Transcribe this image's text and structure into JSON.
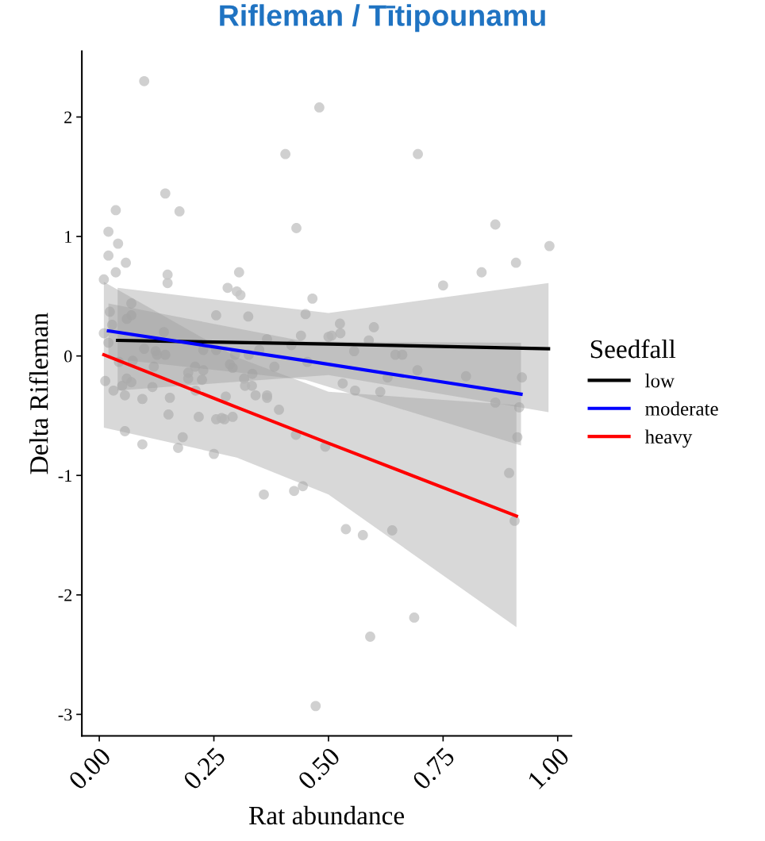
{
  "chart_data": {
    "type": "scatter",
    "title": "Rifleman / Tītipounamu",
    "xlabel": "Rat abundance",
    "ylabel": "Delta Rifleman",
    "legend_title": "Seedfall",
    "legend": "right",
    "grid": false,
    "xlim": [
      -0.038,
      1.03
    ],
    "xticks": [
      {
        "value": 0,
        "label": "0.00"
      },
      {
        "value": 0.25,
        "label": "0.25"
      },
      {
        "value": 0.5,
        "label": "0.50"
      },
      {
        "value": 0.75,
        "label": "0.75"
      },
      {
        "value": 1,
        "label": "1.00"
      }
    ],
    "ylim": [
      -3.18,
      2.55
    ],
    "yticks": [
      -3,
      -2,
      -1,
      0,
      1,
      2
    ],
    "series": [
      {
        "color": "#c4c4c4",
        "marker": "circle",
        "x": [
          0.098,
          0.48,
          0.695,
          0.406,
          0.144,
          0.175,
          0.036,
          0.43,
          0.864,
          0.02,
          0.041,
          0.982,
          0.909,
          0.02,
          0.058,
          0.834,
          0.75,
          0.036,
          0.149,
          0.149,
          0.305,
          0.01,
          0.28,
          0.3,
          0.308,
          0.465,
          0.07,
          0.023,
          0.028,
          0.06,
          0.07,
          0.255,
          0.325,
          0.45,
          0.01,
          0.141,
          0.44,
          0.02,
          0.098,
          0.123,
          0.126,
          0.144,
          0.227,
          0.255,
          0.296,
          0.326,
          0.349,
          0.366,
          0.419,
          0.5,
          0.525,
          0.599,
          0.526,
          0.588,
          0.556,
          0.646,
          0.661,
          0.694,
          0.629,
          0.531,
          0.558,
          0.613,
          0.8,
          0.922,
          0.864,
          0.916,
          0.912,
          0.493,
          0.894,
          0.906,
          0.538,
          0.575,
          0.639,
          0.687,
          0.591,
          0.472,
          0.043,
          0.073,
          0.119,
          0.209,
          0.227,
          0.194,
          0.194,
          0.224,
          0.285,
          0.291,
          0.316,
          0.334,
          0.382,
          0.454,
          0.013,
          0.06,
          0.07,
          0.05,
          0.031,
          0.056,
          0.094,
          0.116,
          0.21,
          0.276,
          0.318,
          0.333,
          0.341,
          0.366,
          0.366,
          0.392,
          0.154,
          0.151,
          0.217,
          0.255,
          0.267,
          0.273,
          0.291,
          0.429,
          0.056,
          0.094,
          0.172,
          0.182,
          0.25,
          0.359,
          0.425,
          0.444,
          0.507
        ],
        "values": [
          2.3,
          2.08,
          1.69,
          1.69,
          1.36,
          1.21,
          1.22,
          1.07,
          1.1,
          1.04,
          0.94,
          0.92,
          0.78,
          0.84,
          0.78,
          0.7,
          0.59,
          0.7,
          0.68,
          0.61,
          0.7,
          0.64,
          0.57,
          0.54,
          0.51,
          0.48,
          0.44,
          0.37,
          0.26,
          0.31,
          0.34,
          0.34,
          0.33,
          0.35,
          0.19,
          0.2,
          0.17,
          0.11,
          0.06,
          0.04,
          0.01,
          0.01,
          0.05,
          0.05,
          0.01,
          0.01,
          0.05,
          0.14,
          0.09,
          0.16,
          0.27,
          0.24,
          0.19,
          0.13,
          0.04,
          0.01,
          0.01,
          -0.12,
          -0.18,
          -0.23,
          -0.29,
          -0.3,
          -0.17,
          -0.18,
          -0.39,
          -0.43,
          -0.68,
          -0.76,
          -0.98,
          -1.38,
          -1.45,
          -1.5,
          -1.46,
          -2.19,
          -2.35,
          -2.93,
          -0.05,
          -0.04,
          -0.09,
          -0.09,
          -0.12,
          -0.14,
          -0.19,
          -0.2,
          -0.07,
          -0.1,
          -0.19,
          -0.15,
          -0.09,
          -0.05,
          -0.21,
          -0.19,
          -0.22,
          -0.25,
          -0.29,
          -0.33,
          -0.36,
          -0.26,
          -0.29,
          -0.34,
          -0.25,
          -0.25,
          -0.33,
          -0.33,
          -0.35,
          -0.45,
          -0.35,
          -0.49,
          -0.51,
          -0.53,
          -0.52,
          -0.53,
          -0.51,
          -0.66,
          -0.63,
          -0.74,
          -0.77,
          -0.68,
          -0.82,
          -1.16,
          -1.13,
          -1.09,
          0.17
        ]
      },
      {
        "type": "line",
        "name": "low",
        "color": "#000000",
        "x": [
          0.04,
          0.5,
          0.98
        ],
        "values": [
          0.13,
          0.1,
          0.06
        ],
        "lower": [
          -0.29,
          -0.16,
          -0.47
        ],
        "upper": [
          0.57,
          0.36,
          0.61
        ]
      },
      {
        "type": "line",
        "name": "moderate",
        "color": "#0000ff",
        "x": [
          0.02,
          0.45,
          0.92
        ],
        "values": [
          0.21,
          -0.04,
          -0.32
        ],
        "lower": [
          -0.02,
          -0.2,
          -0.75
        ],
        "upper": [
          0.44,
          0.12,
          0.11
        ]
      },
      {
        "type": "line",
        "name": "heavy",
        "color": "#ff0000",
        "x": [
          0.01,
          0.3,
          0.5,
          0.91
        ],
        "values": [
          0.01,
          -0.43,
          -0.73,
          -1.34
        ],
        "lower": [
          -0.6,
          -0.85,
          -1.16,
          -2.27
        ],
        "upper": [
          0.62,
          -0.01,
          -0.3,
          -0.41
        ]
      }
    ]
  }
}
